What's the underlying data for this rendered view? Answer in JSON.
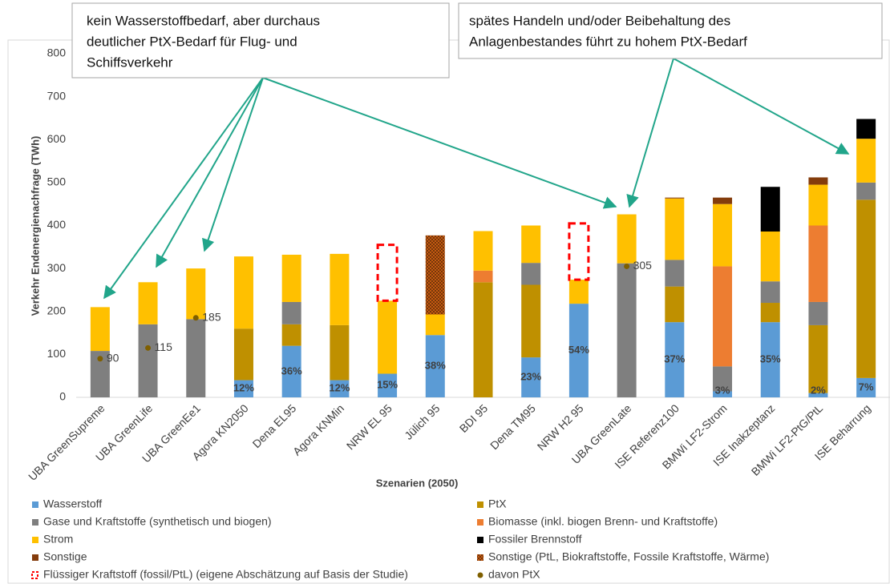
{
  "annotations": [
    "kein Wasserstoffbedarf, aber durchaus",
    "deutlicher PtX-Bedarf für Flug- und",
    "Schiffsverkehr",
    "spätes Handeln und/oder Beibehaltung des",
    "Anlagenbestandes führt zu hohem PtX-Bedarf"
  ],
  "chart_data": {
    "type": "stacked_bar",
    "y_label": "Verkehr Endenergienachfrage (TWh)",
    "x_label": "Szenarien (2050)",
    "categories": [
      "UBA GreenSupreme",
      "UBA GreenLife",
      "UBA GreenEe1",
      "Agora KN2050",
      "Dena EL95",
      "Agora KNMin",
      "NRW EL 95",
      "Jülich 95",
      "BDI 95",
      "Dena TM95",
      "NRW H2 95",
      "UBA GreenLate",
      "ISE Referenz100",
      "BMWi LF2-Strom",
      "ISE Inakzeptanz",
      "BMWi LF2-PtG/PtL",
      "ISE Beharrung"
    ],
    "ylim": [
      0,
      800
    ],
    "yticks": [
      0,
      100,
      200,
      300,
      400,
      500,
      600,
      700,
      800
    ],
    "grid": false,
    "series": [
      {
        "name": "Wasserstoff",
        "color": "#5b9bd5",
        "values": [
          0,
          0,
          0,
          40,
          120,
          40,
          55,
          145,
          0,
          93,
          218,
          0,
          175,
          14,
          175,
          10,
          45
        ]
      },
      {
        "name": "PtX",
        "color": "#bf9000",
        "values": [
          0,
          0,
          0,
          120,
          50,
          128,
          0,
          0,
          268,
          169,
          0,
          0,
          83,
          0,
          45,
          158,
          415
        ]
      },
      {
        "name": "Gase und Kraftstoffe (synthetisch und biogen)",
        "color": "#7f7f7f",
        "values": [
          108,
          170,
          182,
          0,
          52,
          0,
          0,
          0,
          0,
          51,
          0,
          312,
          62,
          58,
          50,
          54,
          40
        ]
      },
      {
        "name": "Biomasse (inkl. biogen Brenn- und Kraftstoffe)",
        "color": "#ed7d31",
        "values": [
          0,
          0,
          0,
          0,
          0,
          0,
          0,
          0,
          27,
          0,
          0,
          0,
          0,
          233,
          0,
          178,
          0
        ]
      },
      {
        "name": "Strom",
        "color": "#ffc000",
        "values": [
          102,
          98,
          118,
          168,
          110,
          166,
          170,
          48,
          92,
          87,
          56,
          114,
          143,
          145,
          116,
          95,
          102
        ]
      },
      {
        "name": "Sonstige (PtL, Biokraftstoffe, Fossile Kraftstoffe, Wärme)",
        "color": "#843c0c",
        "style": "pattern",
        "values": [
          0,
          0,
          0,
          0,
          0,
          0,
          0,
          184,
          0,
          0,
          0,
          0,
          0,
          0,
          0,
          0,
          0
        ]
      },
      {
        "name": "Fossiler Brennstoff",
        "color": "#000000",
        "values": [
          0,
          0,
          0,
          0,
          0,
          0,
          0,
          0,
          0,
          0,
          0,
          0,
          0,
          0,
          104,
          0,
          46
        ]
      },
      {
        "name": "Sonstige",
        "color": "#843c0c",
        "values": [
          0,
          0,
          0,
          0,
          0,
          0,
          0,
          0,
          0,
          0,
          0,
          0,
          2,
          15,
          0,
          17,
          0
        ]
      },
      {
        "name": "Flüssiger Kraftstoff (fossil/PtL) (eigene Abschätzung auf Basis der Studie)",
        "color": "#ff0000",
        "style": "dashed",
        "values": [
          null,
          null,
          null,
          null,
          null,
          null,
          130,
          null,
          null,
          null,
          131,
          null,
          null,
          null,
          null,
          null,
          null
        ]
      },
      {
        "name": "davon PtX",
        "color": "#7f5f00",
        "style": "dot",
        "values": [
          90,
          115,
          185,
          null,
          null,
          null,
          null,
          null,
          null,
          null,
          null,
          305,
          null,
          null,
          null,
          null,
          null
        ]
      }
    ],
    "percent_labels": [
      null,
      null,
      null,
      "12%",
      "36%",
      "12%",
      "15%",
      "38%",
      null,
      "23%",
      "54%",
      null,
      "37%",
      "3%",
      "35%",
      "2%",
      "7%"
    ]
  }
}
